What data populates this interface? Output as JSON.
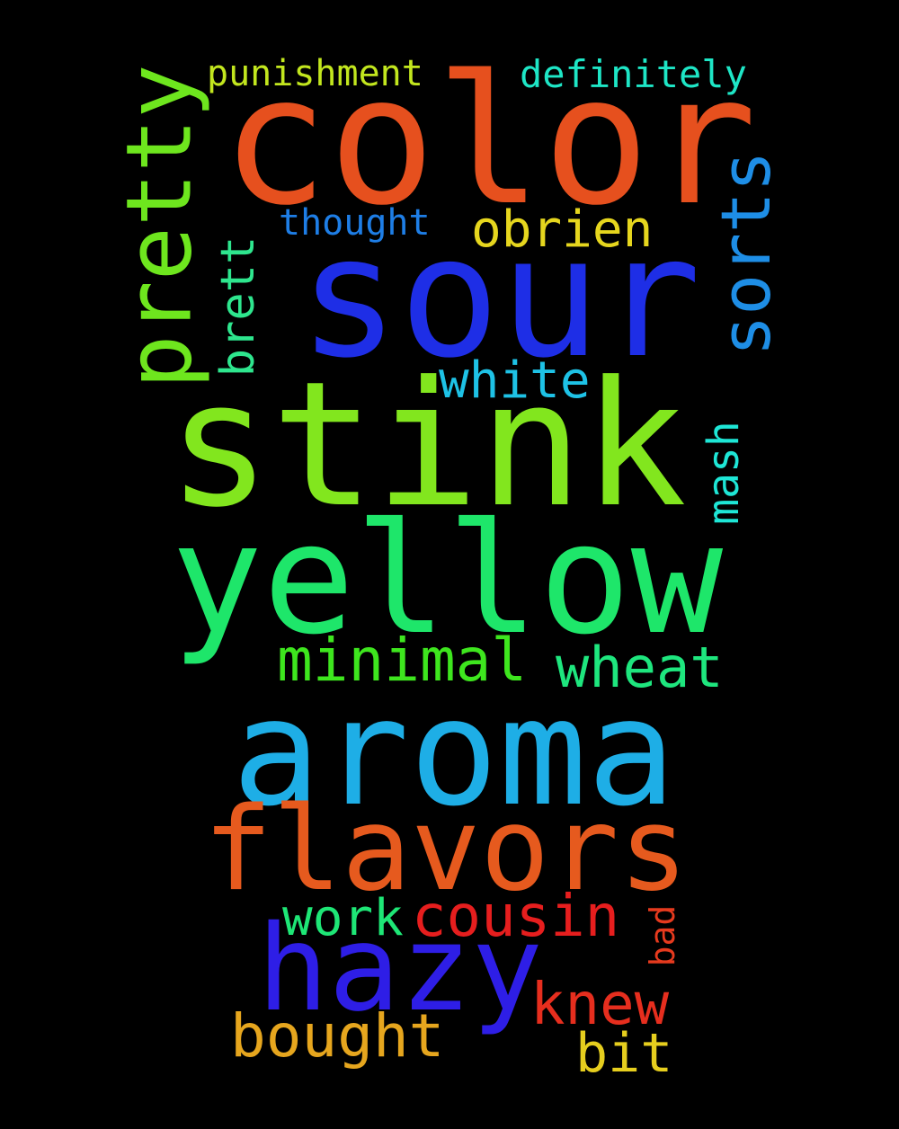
{
  "words": [
    {
      "text": "color",
      "color": "#e6501e"
    },
    {
      "text": "sour",
      "color": "#1e2ee6"
    },
    {
      "text": "stink",
      "color": "#82e61e"
    },
    {
      "text": "yellow",
      "color": "#1ee66a"
    },
    {
      "text": "aroma",
      "color": "#1eaee6"
    },
    {
      "text": "flavors",
      "color": "#e65a1e"
    },
    {
      "text": "hazy",
      "color": "#2e1ee6"
    },
    {
      "text": "pretty",
      "color": "#6ee61e"
    },
    {
      "text": "sorts",
      "color": "#1e8ee6"
    },
    {
      "text": "punishment",
      "color": "#c2e61e"
    },
    {
      "text": "definitely",
      "color": "#1ee6c6"
    },
    {
      "text": "thought",
      "color": "#1e7ee6"
    },
    {
      "text": "obrien",
      "color": "#e6d61e"
    },
    {
      "text": "brett",
      "color": "#2ee68e"
    },
    {
      "text": "white",
      "color": "#1ec2e6"
    },
    {
      "text": "mash",
      "color": "#1ee6d6"
    },
    {
      "text": "minimal",
      "color": "#3ee61e"
    },
    {
      "text": "wheat",
      "color": "#1ee67e"
    },
    {
      "text": "work",
      "color": "#1ee676"
    },
    {
      "text": "cousin",
      "color": "#e61e1e"
    },
    {
      "text": "bad",
      "color": "#e63a1e"
    },
    {
      "text": "knew",
      "color": "#e62e1e"
    },
    {
      "text": "bought",
      "color": "#e6a61e"
    },
    {
      "text": "bit",
      "color": "#e6ce1e"
    }
  ]
}
